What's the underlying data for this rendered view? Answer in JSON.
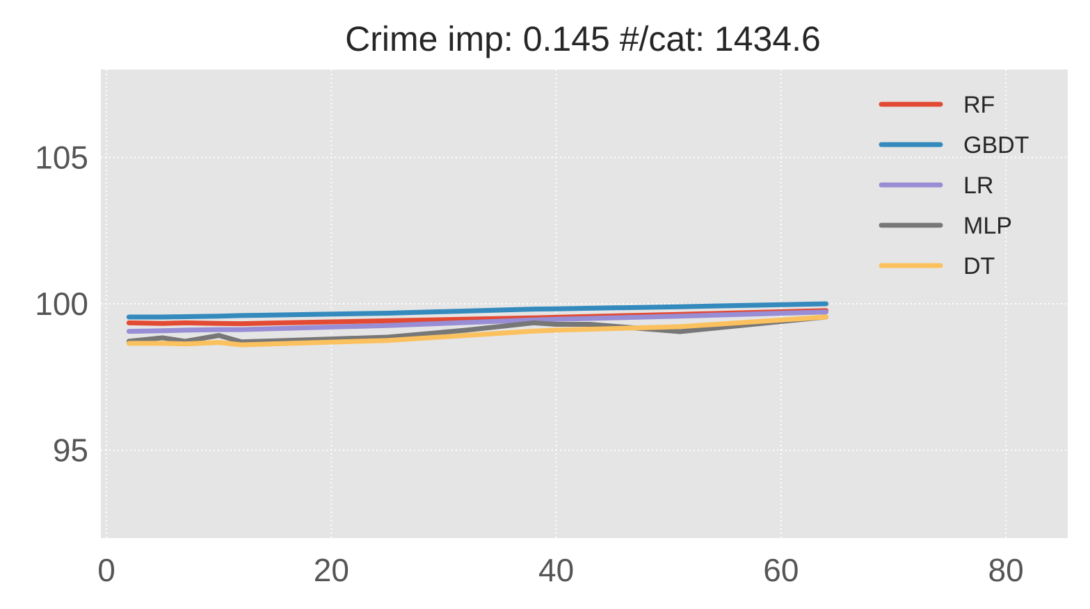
{
  "chart_data": {
    "type": "line",
    "title": "Crime imp: 0.145 #/cat: 1434.6",
    "xlabel": "",
    "ylabel": "",
    "xlim": [
      -0.5,
      85.5
    ],
    "ylim": [
      92.0,
      108.0
    ],
    "xticks": [
      0,
      20,
      40,
      60,
      80
    ],
    "yticks": [
      95,
      100,
      105
    ],
    "grid": true,
    "legend_position": "upper-right",
    "series": [
      {
        "name": "RF",
        "color": "#E24A33",
        "x": [
          2,
          5,
          7,
          10,
          12,
          25,
          38,
          40,
          51,
          64
        ],
        "y": [
          99.35,
          99.33,
          99.35,
          99.33,
          99.32,
          99.42,
          99.52,
          99.54,
          99.64,
          99.77
        ]
      },
      {
        "name": "GBDT",
        "color": "#348ABD",
        "x": [
          2,
          5,
          7,
          10,
          12,
          25,
          38,
          40,
          51,
          64
        ],
        "y": [
          99.55,
          99.55,
          99.56,
          99.58,
          99.6,
          99.68,
          99.82,
          99.83,
          99.9,
          100.0
        ]
      },
      {
        "name": "LR",
        "color": "#988ED5",
        "x": [
          2,
          5,
          7,
          10,
          12,
          25,
          38,
          40,
          51,
          64
        ],
        "y": [
          99.06,
          99.08,
          99.1,
          99.12,
          99.12,
          99.26,
          99.45,
          99.47,
          99.58,
          99.72
        ]
      },
      {
        "name": "MLP",
        "color": "#777777",
        "x": [
          2,
          5,
          7,
          10,
          12,
          25,
          32,
          38,
          40,
          43,
          51,
          64
        ],
        "y": [
          98.72,
          98.84,
          98.72,
          98.92,
          98.7,
          98.86,
          99.1,
          99.35,
          99.3,
          99.3,
          99.05,
          99.55
        ]
      },
      {
        "name": "DT",
        "color": "#FBC15E",
        "x": [
          2,
          5,
          7,
          10,
          12,
          25,
          38,
          40,
          51,
          64
        ],
        "y": [
          98.65,
          98.65,
          98.63,
          98.68,
          98.6,
          98.75,
          99.07,
          99.1,
          99.22,
          99.55
        ]
      }
    ]
  }
}
